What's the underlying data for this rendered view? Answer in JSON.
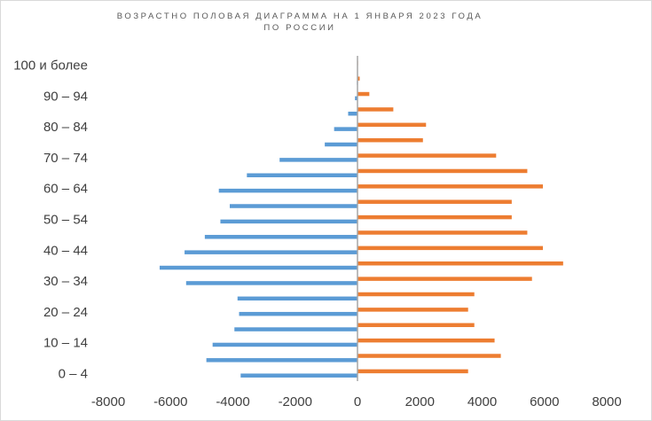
{
  "chart_data": {
    "type": "bar",
    "orientation": "horizontal",
    "title": [
      "ВОЗРАСТНО ПОЛОВАЯ ДИАГРАММА НА 1 ЯНВАРЯ 2023 ГОДА",
      "ПО РОССИИ"
    ],
    "categories": [
      "0–4",
      "5–9",
      "10–14",
      "15–19",
      "20–24",
      "25–29",
      "30–34",
      "35–39",
      "40–44",
      "45–49",
      "50–54",
      "55–59",
      "60–64",
      "65–69",
      "70–74",
      "75–79",
      "80–84",
      "85–89",
      "90–94",
      "95–99",
      "100 и более"
    ],
    "category_labels_shown": [
      "0 – 4",
      "10 – 14",
      "20 – 24",
      "30 – 34",
      "40 – 44",
      "50 – 54",
      "60 – 64",
      "70 – 74",
      "80 – 84",
      "90 – 94",
      "100 и более"
    ],
    "series": [
      {
        "color": "#5B9BD5",
        "values": [
          -3750,
          -4850,
          -4650,
          -3950,
          -3800,
          -3850,
          -5500,
          -6350,
          -5550,
          -4900,
          -4400,
          -4100,
          -4450,
          -3550,
          -2500,
          -1050,
          -750,
          -300,
          -80,
          -20,
          -5
        ]
      },
      {
        "color": "#ED7D31",
        "values": [
          3550,
          4600,
          4400,
          3750,
          3550,
          3750,
          5600,
          6600,
          5950,
          5450,
          4950,
          4950,
          5950,
          5450,
          4450,
          2100,
          2200,
          1150,
          380,
          70,
          10
        ]
      }
    ],
    "xlim": [
      -8000,
      8000
    ],
    "xticks": [
      -8000,
      -6000,
      -4000,
      -2000,
      0,
      2000,
      4000,
      6000,
      8000
    ],
    "xtick_labels": [
      "-8000",
      "-6000",
      "-4000",
      "-2000",
      "0",
      "2000",
      "4000",
      "6000",
      "8000"
    ],
    "grid": false,
    "legend": "none"
  }
}
